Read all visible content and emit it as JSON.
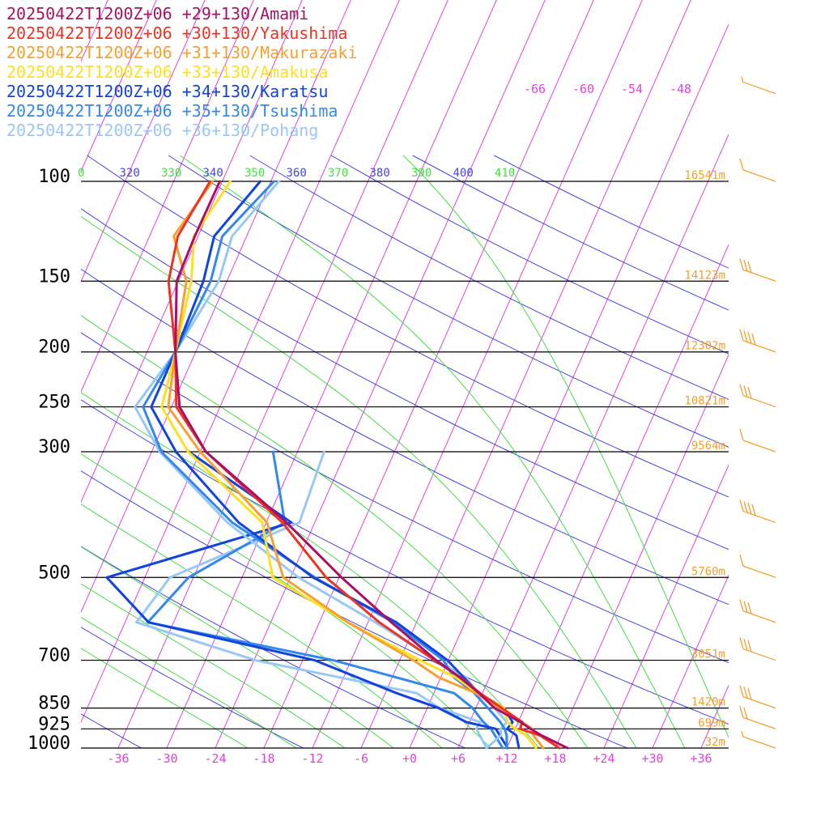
{
  "chart_data": {
    "type": "line",
    "pressure_levels": [
      100,
      150,
      200,
      250,
      300,
      500,
      700,
      850,
      925,
      1000
    ],
    "pressure_labels": [
      "100",
      "150",
      "200",
      "250",
      "300",
      "500",
      "700",
      "850",
      "925",
      "1000"
    ],
    "heights": [
      {
        "p": 100,
        "label": "16541m"
      },
      {
        "p": 150,
        "label": "14123m"
      },
      {
        "p": 200,
        "label": "12302m"
      },
      {
        "p": 250,
        "label": "10821m"
      },
      {
        "p": 300,
        "label": "9564m"
      },
      {
        "p": 500,
        "label": "5760m"
      },
      {
        "p": 700,
        "label": "3051m"
      },
      {
        "p": 850,
        "label": "1420m"
      },
      {
        "p": 925,
        "label": "699m"
      },
      {
        "p": 1000,
        "label": "32m"
      }
    ],
    "x_ticks": [
      -36,
      -30,
      -24,
      -18,
      -12,
      -6,
      0,
      6,
      12,
      18,
      24,
      30,
      36
    ],
    "x_tick_labels": [
      "-36",
      "-30",
      "-24",
      "-18",
      "-12",
      "-6",
      "+0",
      "+6",
      "+12",
      "+18",
      "+24",
      "+30",
      "+36"
    ],
    "isotherm_labels": [
      "-66",
      "-60",
      "-54",
      "-48"
    ],
    "theta_labels": [
      {
        "text": "0",
        "color": "#44dd44"
      },
      {
        "text": "320",
        "color": "#4444dd"
      },
      {
        "text": "330",
        "color": "#44dd44"
      },
      {
        "text": "340",
        "color": "#4444dd"
      },
      {
        "text": "350",
        "color": "#44dd44"
      },
      {
        "text": "360",
        "color": "#4444dd"
      },
      {
        "text": "370",
        "color": "#44dd44"
      },
      {
        "text": "380",
        "color": "#4444dd"
      },
      {
        "text": "390",
        "color": "#44dd44"
      },
      {
        "text": "400",
        "color": "#4444dd"
      },
      {
        "text": "410",
        "color": "#44dd44"
      }
    ],
    "series": [
      {
        "name": "20250422T1200Z+06 +29+130/Amami",
        "color": "#aa1166",
        "temperature": [
          [
            100,
            -54.3
          ],
          [
            125,
            -54.4
          ],
          [
            150,
            -54.2
          ],
          [
            200,
            -50.5
          ],
          [
            250,
            -47.0
          ],
          [
            300,
            -41.3
          ],
          [
            400,
            -27.5
          ],
          [
            500,
            -17.7
          ],
          [
            600,
            -9.1
          ],
          [
            700,
            -1.5
          ],
          [
            750,
            2.3
          ],
          [
            800,
            5.6
          ],
          [
            850,
            8.3
          ],
          [
            900,
            12.3
          ],
          [
            925,
            13.9
          ],
          [
            950,
            15.6
          ],
          [
            1000,
            19.5
          ]
        ],
        "dewpoint": []
      },
      {
        "name": "20250422T1200Z+06 +30+130/Yakushima",
        "color": "#ee3322",
        "temperature": [
          [
            100,
            -55.5
          ],
          [
            125,
            -56.5
          ],
          [
            150,
            -55.2
          ],
          [
            200,
            -50.5
          ],
          [
            250,
            -47.4
          ],
          [
            300,
            -41.3
          ],
          [
            400,
            -28.0
          ],
          [
            500,
            -19.6
          ],
          [
            600,
            -10.6
          ],
          [
            700,
            -1.7
          ],
          [
            750,
            2.4
          ],
          [
            800,
            5.7
          ],
          [
            850,
            9.2
          ],
          [
            900,
            12.5
          ],
          [
            925,
            12.6
          ],
          [
            950,
            15.4
          ],
          [
            1000,
            18.5
          ]
        ],
        "dewpoint": []
      },
      {
        "name": "20250422T1200Z+06 +31+130/Makurazaki",
        "color": "#f7a030",
        "temperature": [
          [
            100,
            -55.2
          ],
          [
            125,
            -57.0
          ],
          [
            150,
            -53.0
          ],
          [
            200,
            -50.5
          ],
          [
            250,
            -48.4
          ],
          [
            300,
            -42.0
          ],
          [
            400,
            -29.9
          ],
          [
            500,
            -24.9
          ],
          [
            600,
            -14.5
          ],
          [
            700,
            -4.3
          ],
          [
            750,
            -0.3
          ],
          [
            800,
            5.2
          ],
          [
            850,
            8.8
          ],
          [
            900,
            12.5
          ],
          [
            925,
            14.1
          ],
          [
            950,
            14.6
          ],
          [
            1000,
            16.5
          ]
        ],
        "dewpoint": []
      },
      {
        "name": "20250422T1200Z+06 +33+130/Amakusa",
        "color": "#ffe020",
        "temperature": [
          [
            100,
            -53.0
          ],
          [
            125,
            -54.5
          ],
          [
            150,
            -52.4
          ],
          [
            200,
            -50.5
          ],
          [
            250,
            -49.2
          ],
          [
            300,
            -43.5
          ],
          [
            400,
            -30.5
          ],
          [
            500,
            -26.2
          ],
          [
            600,
            -14.5
          ],
          [
            700,
            -3.5
          ],
          [
            750,
            1.8
          ],
          [
            800,
            5.4
          ],
          [
            850,
            9.5
          ],
          [
            900,
            10.7
          ],
          [
            925,
            12.0
          ],
          [
            950,
            13.7
          ],
          [
            1000,
            15.6
          ]
        ],
        "dewpoint": []
      },
      {
        "name": "20250422T1200Z+06 +34+130/Karatsu",
        "color": "#1144dd",
        "temperature": [
          [
            100,
            -49.3
          ],
          [
            125,
            -52.0
          ],
          [
            150,
            -50.9
          ],
          [
            200,
            -50.5
          ],
          [
            250,
            -50.5
          ],
          [
            300,
            -45.0
          ],
          [
            400,
            -33.4
          ],
          [
            500,
            -21.2
          ],
          [
            600,
            -8.5
          ],
          [
            700,
            -0.1
          ],
          [
            750,
            2.8
          ],
          [
            800,
            5.5
          ],
          [
            850,
            9.5
          ],
          [
            900,
            11.3
          ],
          [
            925,
            11.0
          ],
          [
            950,
            12.5
          ],
          [
            1000,
            13.5
          ]
        ],
        "dewpoint": [
          [
            300,
            -43.4
          ],
          [
            400,
            -26.9
          ],
          [
            500,
            -46.7
          ],
          [
            600,
            -39.1
          ],
          [
            700,
            -16.5
          ],
          [
            800,
            -4.6
          ],
          [
            850,
            1.4
          ],
          [
            900,
            5.6
          ],
          [
            925,
            9.6
          ],
          [
            1000,
            12.1
          ]
        ]
      },
      {
        "name": "20250422T1200Z+06 +35+130/Tsushima",
        "color": "#3388ee",
        "temperature": [
          [
            100,
            -47.6
          ],
          [
            125,
            -51.0
          ],
          [
            150,
            -50.0
          ],
          [
            200,
            -50.5
          ],
          [
            250,
            -51.5
          ],
          [
            300,
            -46.8
          ],
          [
            400,
            -34.2
          ],
          [
            500,
            -21.0
          ],
          [
            600,
            -8.9
          ],
          [
            700,
            -0.6
          ],
          [
            750,
            1.6
          ],
          [
            800,
            5.0
          ],
          [
            850,
            7.5
          ],
          [
            900,
            9.8
          ],
          [
            925,
            10.7
          ],
          [
            950,
            11.3
          ],
          [
            1000,
            12.0
          ]
        ],
        "dewpoint": [
          [
            300,
            -33.0
          ],
          [
            400,
            -27.7
          ],
          [
            500,
            -36.6
          ],
          [
            600,
            -39.2
          ],
          [
            700,
            -14.2
          ],
          [
            800,
            2.5
          ],
          [
            850,
            5.6
          ],
          [
            900,
            7.7
          ],
          [
            925,
            9.0
          ],
          [
            1000,
            11.5
          ]
        ]
      },
      {
        "name": "20250422T1200Z+06 +36+130/Pohang",
        "color": "#99c8f5",
        "temperature": [
          [
            100,
            -47.0
          ],
          [
            125,
            -49.8
          ],
          [
            150,
            -49.0
          ],
          [
            200,
            -50.5
          ],
          [
            250,
            -52.5
          ],
          [
            300,
            -47.0
          ],
          [
            400,
            -34.8
          ],
          [
            500,
            -23.0
          ],
          [
            600,
            -11.1
          ],
          [
            700,
            -1.5
          ],
          [
            750,
            3.1
          ],
          [
            800,
            5.5
          ],
          [
            850,
            8.3
          ],
          [
            900,
            10.6
          ],
          [
            925,
            10.2
          ],
          [
            950,
            10.6
          ],
          [
            1000,
            9.5
          ]
        ],
        "dewpoint": [
          [
            300,
            -26.7
          ],
          [
            400,
            -25.9
          ],
          [
            500,
            -38.9
          ],
          [
            600,
            -40.6
          ],
          [
            700,
            -23.8
          ],
          [
            800,
            -2.1
          ],
          [
            850,
            1.5
          ],
          [
            900,
            7.3
          ],
          [
            925,
            7.2
          ],
          [
            1000,
            9.5
          ]
        ]
      }
    ],
    "wind_barbs": [
      {
        "p": 70,
        "speed": 5
      },
      {
        "p": 100,
        "speed": 10
      },
      {
        "p": 150,
        "speed": 30
      },
      {
        "p": 200,
        "speed": 40
      },
      {
        "p": 250,
        "speed": 30
      },
      {
        "p": 300,
        "speed": 10
      },
      {
        "p": 400,
        "speed": 40
      },
      {
        "p": 500,
        "speed": 10
      },
      {
        "p": 600,
        "speed": 30
      },
      {
        "p": 700,
        "speed": 30
      },
      {
        "p": 850,
        "speed": 30
      },
      {
        "p": 925,
        "speed": 20
      },
      {
        "p": 1000,
        "speed": 5
      }
    ],
    "colors": {
      "isotherm": "#dd44dd",
      "dry_adiabat": "#4444dd",
      "moist_adiabat": "#44dd44",
      "isobar": "#000000",
      "height_label": "#f0a030",
      "wind_barb": "#f0a030"
    }
  }
}
